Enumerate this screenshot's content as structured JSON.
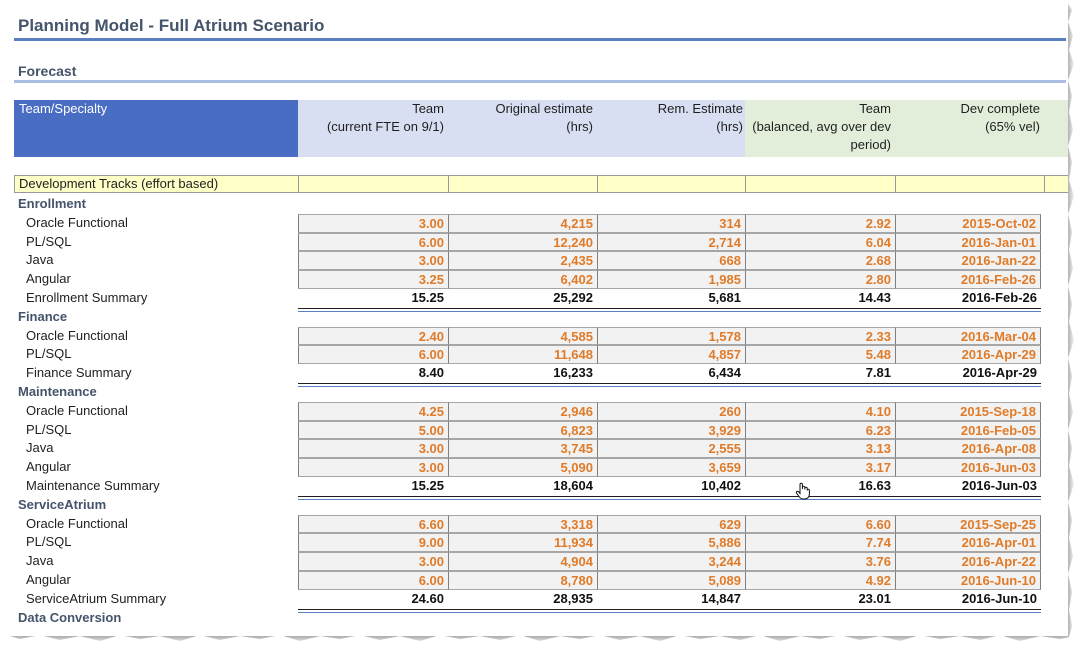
{
  "title": "Planning Model - Full Atrium Scenario",
  "subtitle": "Forecast",
  "headers": {
    "team_specialty": "Team/Specialty",
    "team_fte": [
      "Team",
      "(current FTE on 9/1)"
    ],
    "original_estimate": [
      "Original estimate",
      "(hrs)"
    ],
    "remaining_estimate": [
      "Rem. Estimate",
      "(hrs)"
    ],
    "team_balanced": [
      "Team",
      "(balanced, avg over dev",
      "period)"
    ],
    "dev_complete": [
      "Dev complete",
      "(65% vel)"
    ]
  },
  "tracks_label": "Development Tracks (effort based)",
  "sections": [
    {
      "name": "Enrollment",
      "rows": [
        {
          "label": "Oracle Functional",
          "fte": "3.00",
          "orig": "4,215",
          "rem": "314",
          "balanced": "2.92",
          "complete": "2015-Oct-02"
        },
        {
          "label": "PL/SQL",
          "fte": "6.00",
          "orig": "12,240",
          "rem": "2,714",
          "balanced": "6.04",
          "complete": "2016-Jan-01"
        },
        {
          "label": "Java",
          "fte": "3.00",
          "orig": "2,435",
          "rem": "668",
          "balanced": "2.68",
          "complete": "2016-Jan-22"
        },
        {
          "label": "Angular",
          "fte": "3.25",
          "orig": "6,402",
          "rem": "1,985",
          "balanced": "2.80",
          "complete": "2016-Feb-26"
        }
      ],
      "summary": {
        "label": "Enrollment Summary",
        "fte": "15.25",
        "orig": "25,292",
        "rem": "5,681",
        "balanced": "14.43",
        "complete": "2016-Feb-26"
      }
    },
    {
      "name": "Finance",
      "rows": [
        {
          "label": "Oracle Functional",
          "fte": "2.40",
          "orig": "4,585",
          "rem": "1,578",
          "balanced": "2.33",
          "complete": "2016-Mar-04"
        },
        {
          "label": "PL/SQL",
          "fte": "6.00",
          "orig": "11,648",
          "rem": "4,857",
          "balanced": "5.48",
          "complete": "2016-Apr-29"
        }
      ],
      "summary": {
        "label": "Finance Summary",
        "fte": "8.40",
        "orig": "16,233",
        "rem": "6,434",
        "balanced": "7.81",
        "complete": "2016-Apr-29"
      }
    },
    {
      "name": "Maintenance",
      "rows": [
        {
          "label": "Oracle Functional",
          "fte": "4.25",
          "orig": "2,946",
          "rem": "260",
          "balanced": "4.10",
          "complete": "2015-Sep-18"
        },
        {
          "label": "PL/SQL",
          "fte": "5.00",
          "orig": "6,823",
          "rem": "3,929",
          "balanced": "6.23",
          "complete": "2016-Feb-05"
        },
        {
          "label": "Java",
          "fte": "3.00",
          "orig": "3,745",
          "rem": "2,555",
          "balanced": "3.13",
          "complete": "2016-Apr-08"
        },
        {
          "label": "Angular",
          "fte": "3.00",
          "orig": "5,090",
          "rem": "3,659",
          "balanced": "3.17",
          "complete": "2016-Jun-03"
        }
      ],
      "summary": {
        "label": "Maintenance Summary",
        "fte": "15.25",
        "orig": "18,604",
        "rem": "10,402",
        "balanced": "16.63",
        "complete": "2016-Jun-03"
      }
    },
    {
      "name": "ServiceAtrium",
      "rows": [
        {
          "label": "Oracle Functional",
          "fte": "6.60",
          "orig": "3,318",
          "rem": "629",
          "balanced": "6.60",
          "complete": "2015-Sep-25"
        },
        {
          "label": "PL/SQL",
          "fte": "9.00",
          "orig": "11,934",
          "rem": "5,886",
          "balanced": "7.74",
          "complete": "2016-Apr-01"
        },
        {
          "label": "Java",
          "fte": "3.00",
          "orig": "4,904",
          "rem": "3,244",
          "balanced": "3.76",
          "complete": "2016-Apr-22"
        },
        {
          "label": "Angular",
          "fte": "6.00",
          "orig": "8,780",
          "rem": "5,089",
          "balanced": "4.92",
          "complete": "2016-Jun-10"
        }
      ],
      "summary": {
        "label": "ServiceAtrium Summary",
        "fte": "24.60",
        "orig": "28,935",
        "rem": "14,847",
        "balanced": "23.01",
        "complete": "2016-Jun-10"
      }
    },
    {
      "name": "Data Conversion",
      "rows": [],
      "summary": null
    }
  ],
  "colors": {
    "header_blue": "#4a6dc4",
    "header_lavender": "#d9dff2",
    "header_green": "#e2eed9",
    "input_orange": "#e07b29",
    "tracks_yellow": "#ffffc8",
    "title_color": "#44546a"
  }
}
